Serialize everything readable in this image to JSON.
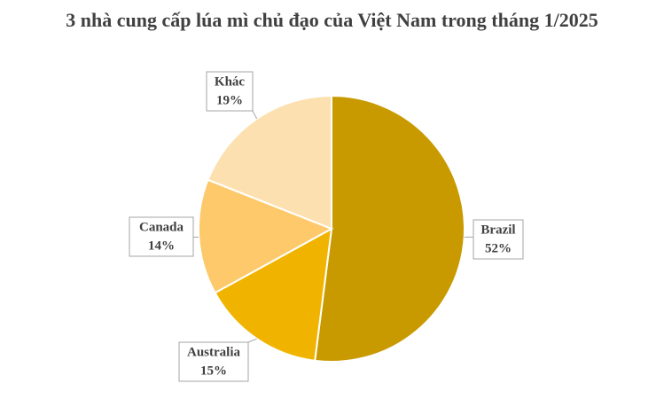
{
  "chart_data": {
    "type": "pie",
    "title": "3 nhà cung cấp lúa mì chủ đạo của Việt Nam trong tháng 1/2025",
    "categories": [
      "Brazil",
      "Australia",
      "Canada",
      "Khác"
    ],
    "values": [
      52,
      15,
      14,
      19
    ],
    "value_labels": [
      "52%",
      "15%",
      "14%",
      "19%"
    ],
    "colors": [
      "#c99a00",
      "#f0b400",
      "#fdc96a",
      "#fde0b0"
    ]
  }
}
